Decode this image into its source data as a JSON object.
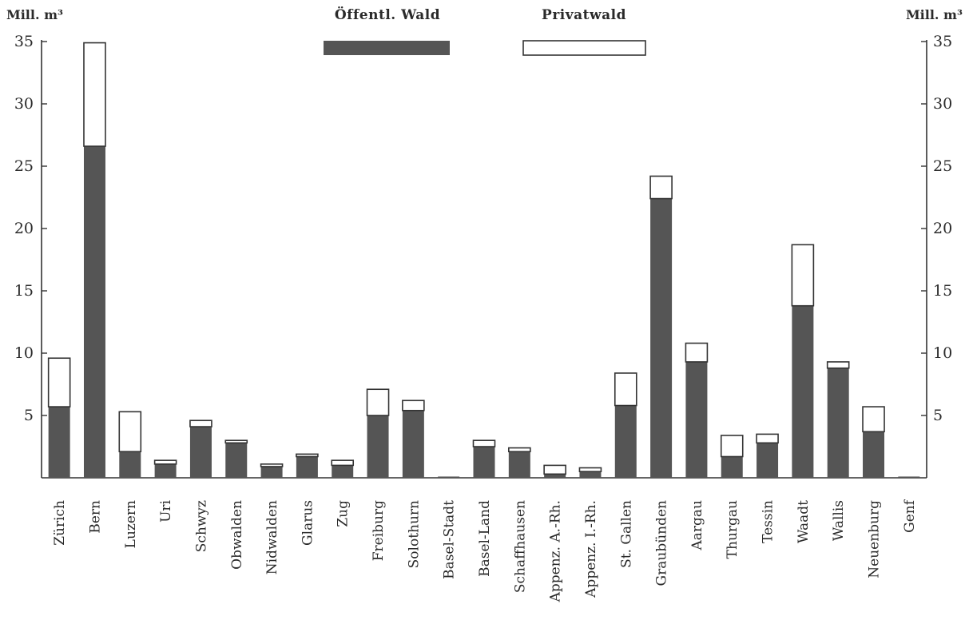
{
  "chart_data": {
    "type": "bar",
    "stacked": true,
    "y_unit_left": "Mill. m³",
    "y_unit_right": "Mill. m³",
    "ylim": [
      0,
      35
    ],
    "yticks": [
      5,
      10,
      15,
      20,
      25,
      30,
      35
    ],
    "legend_position": "top-center",
    "grid": false,
    "categories": [
      "Zürich",
      "Bern",
      "Luzern",
      "Uri",
      "Schwyz",
      "Obwalden",
      "Nidwalden",
      "Glarus",
      "Zug",
      "Freiburg",
      "Solothurn",
      "Basel-Stadt",
      "Basel-Land",
      "Schaffhausen",
      "Appenz. A.-Rh.",
      "Appenz. I.-Rh.",
      "St. Gallen",
      "Graubünden",
      "Aargau",
      "Thurgau",
      "Tessin",
      "Waadt",
      "Wallis",
      "Neuenburg",
      "Genf"
    ],
    "series": [
      {
        "name": "Öffentl. Wald",
        "color": "#555555",
        "values": [
          5.7,
          26.6,
          2.1,
          1.1,
          4.1,
          2.8,
          0.9,
          1.7,
          1.0,
          5.0,
          5.4,
          0.1,
          2.5,
          2.1,
          0.3,
          0.5,
          5.8,
          22.4,
          9.3,
          1.7,
          2.8,
          13.8,
          8.8,
          3.7,
          0.1
        ]
      },
      {
        "name": "Privatwald",
        "color": "#ffffff",
        "values": [
          3.9,
          8.3,
          3.2,
          0.3,
          0.5,
          0.2,
          0.2,
          0.2,
          0.4,
          2.1,
          0.8,
          0.0,
          0.5,
          0.3,
          0.7,
          0.3,
          2.6,
          1.8,
          1.5,
          1.7,
          0.7,
          4.9,
          0.5,
          2.0,
          0.0
        ]
      }
    ]
  }
}
